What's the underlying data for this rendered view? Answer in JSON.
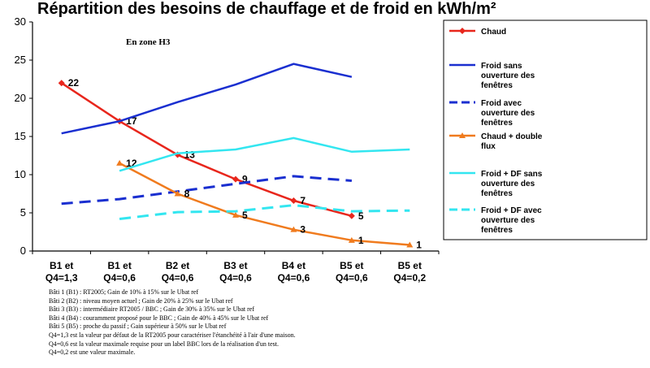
{
  "title": "Répartition des besoins de chauffage et de froid en kWh/m²",
  "chart_data": {
    "type": "line",
    "title": "Répartition des besoins de chauffage et de froid en kWh/m²",
    "annotation": "En zone H3",
    "categories": [
      [
        "B1 et",
        "Q4=1,3"
      ],
      [
        "B1 et",
        "Q4=0,6"
      ],
      [
        "B2 et",
        "Q4=0,6"
      ],
      [
        "B3 et",
        "Q4=0,6"
      ],
      [
        "B4 et",
        "Q4=0,6"
      ],
      [
        "B5 et",
        "Q4=0,6"
      ],
      [
        "B5 et",
        "Q4=0,2"
      ]
    ],
    "ylim": [
      0,
      30
    ],
    "yticks": [
      0,
      5,
      10,
      15,
      20,
      25,
      30
    ],
    "grid": false,
    "legend_position": "right",
    "series": [
      {
        "name": "Chaud",
        "color": "#e8261c",
        "dash": false,
        "marker": "diamond",
        "values": [
          22,
          17,
          12.6,
          9.4,
          6.6,
          4.6,
          null
        ],
        "labels": [
          "22",
          "17",
          "13",
          "9",
          "7",
          "5",
          null
        ]
      },
      {
        "name": "Froid sans ouverture des fenêtres",
        "color": "#1a2fd0",
        "dash": false,
        "marker": null,
        "values": [
          15.4,
          17,
          19.5,
          21.8,
          24.5,
          22.8,
          null
        ],
        "labels": [
          null,
          null,
          null,
          null,
          null,
          null,
          null
        ]
      },
      {
        "name": "Froid avec ouverture des fenêtres",
        "color": "#1a2fd0",
        "dash": true,
        "marker": null,
        "values": [
          6.2,
          6.8,
          7.8,
          8.8,
          9.8,
          9.2,
          null
        ],
        "labels": [
          null,
          null,
          null,
          null,
          null,
          null,
          null
        ]
      },
      {
        "name": "Chaud + double flux",
        "color": "#f07b1e",
        "dash": false,
        "marker": "triangle",
        "values": [
          null,
          11.5,
          7.5,
          4.7,
          2.8,
          1.4,
          0.8
        ],
        "labels": [
          null,
          "12",
          "8",
          "5",
          "3",
          "1",
          "1"
        ]
      },
      {
        "name": "Froid + DF sans ouverture des fenêtres",
        "color": "#33e6f0",
        "dash": false,
        "marker": null,
        "values": [
          null,
          10.5,
          12.8,
          13.3,
          14.8,
          13,
          13.3
        ],
        "labels": [
          null,
          null,
          null,
          null,
          null,
          null,
          null
        ]
      },
      {
        "name": "Froid + DF avec ouverture des fenêtres",
        "color": "#33e6f0",
        "dash": true,
        "marker": null,
        "values": [
          null,
          4.2,
          5.1,
          5.2,
          6,
          5.2,
          5.3
        ],
        "labels": [
          null,
          null,
          null,
          null,
          null,
          null,
          null
        ]
      }
    ],
    "legend": [
      {
        "lines": [
          "Chaud"
        ]
      },
      {
        "lines": [
          "Froid sans",
          "ouverture des",
          "fenêtres"
        ]
      },
      {
        "lines": [
          "Froid avec",
          "ouverture des",
          "fenêtres"
        ]
      },
      {
        "lines": [
          "Chaud + double",
          "flux"
        ]
      },
      {
        "lines": [
          "Froid + DF sans",
          "ouverture des",
          "fenêtres"
        ]
      },
      {
        "lines": [
          "Froid + DF avec",
          "ouverture des",
          "fenêtres"
        ]
      }
    ]
  },
  "notes": [
    "Bâti 1 (B1) : RT2005; Gain de 10% à 15% sur le Ubat ref",
    "Bâti 2 (B2) : niveau moyen actuel ;  Gain de 20% à 25% sur le Ubat ref",
    "Bâti 3 (B3) : intermédiaire RT2005 / BBC ;  Gain de 30% à 35% sur le Ubat ref",
    "Bâti 4 (B4) : couramment proposé pour le BBC ;  Gain de 40% à 45% sur le Ubat ref",
    "Bâti 5 (B5) : proche du passif ;  Gain supérieur à 50% sur le Ubat ref",
    "Q4=1,3 est la valeur par défaut de la RT2005 pour caractériser l'étanchéité à l'air d'une maison.",
    "Q4=0,6 est la valeur maximale requise pour un label BBC lors de la réalisation d'un test.",
    "Q4=0,2 est une valeur maximale."
  ]
}
